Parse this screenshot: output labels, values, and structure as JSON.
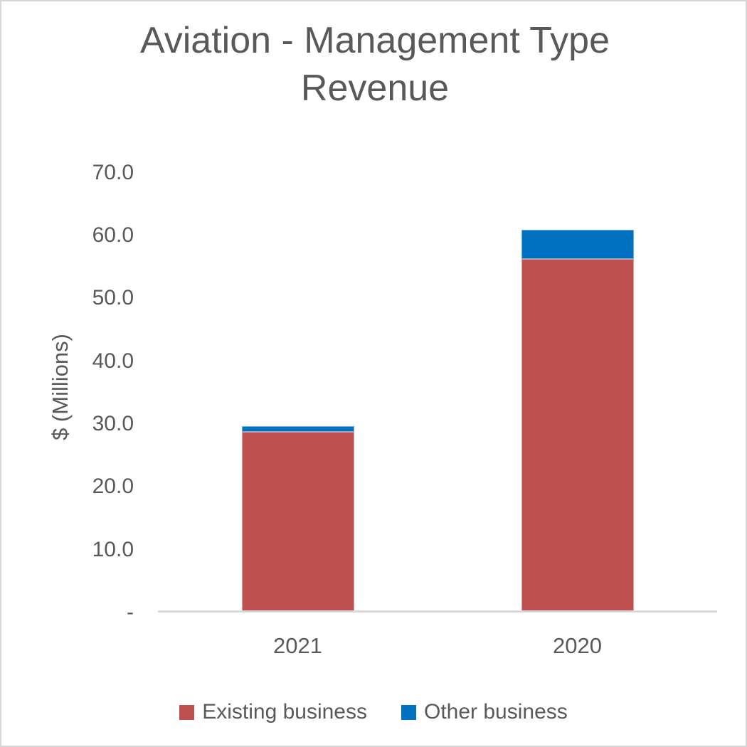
{
  "chart_data": {
    "type": "bar",
    "stacked": true,
    "title": "Aviation - Management Type Revenue",
    "ylabel": "$ (Millions)",
    "xlabel": "",
    "categories": [
      "2021",
      "2020"
    ],
    "series": [
      {
        "name": "Existing business",
        "color": "#BE5050",
        "values": [
          28.7,
          56.3
        ]
      },
      {
        "name": "Other business",
        "color": "#0070C0",
        "values": [
          1.0,
          4.6
        ]
      }
    ],
    "stack_totals": [
      29.7,
      60.9
    ],
    "ylim": [
      0,
      70
    ],
    "ytick_step": 10,
    "ytick_labels": [
      "-",
      "10.0",
      "20.0",
      "30.0",
      "40.0",
      "50.0",
      "60.0",
      "70.0"
    ],
    "grid": false,
    "legend_position": "bottom",
    "colors": {
      "text": "#595959",
      "axis_line": "#DADADA",
      "background": "#FFFFFF",
      "canvas_border": "#D6D6D6"
    }
  }
}
